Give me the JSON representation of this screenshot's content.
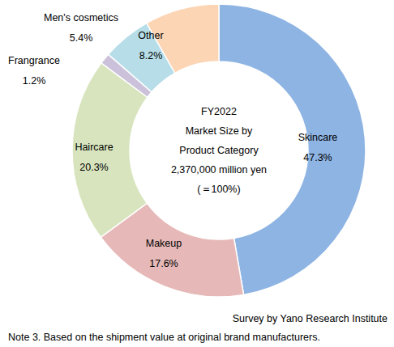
{
  "chart_data": {
    "type": "pie",
    "categories": [
      "Skincare",
      "Makeup",
      "Haircare",
      "Frangrance",
      "Men's cosmetics",
      "Other"
    ],
    "values": [
      47.3,
      17.6,
      20.3,
      1.2,
      5.4,
      8.2
    ],
    "value_labels": [
      "47.3%",
      "17.6%",
      "20.3%",
      "1.2%",
      "5.4%",
      "8.2%"
    ],
    "colors": [
      "#8eb4e3",
      "#e6b9b8",
      "#d7e4bd",
      "#ccc1da",
      "#b7dee8",
      "#fcd5b5"
    ],
    "data_labels": true,
    "center_text": [
      "FY2022",
      "Market Size by",
      "Product Category",
      "2,370,000  million yen",
      "(＝100%)"
    ],
    "source": "Survey by Yano Research Institute",
    "note": "Note 3. Based on the shipment value at original brand manufacturers."
  }
}
